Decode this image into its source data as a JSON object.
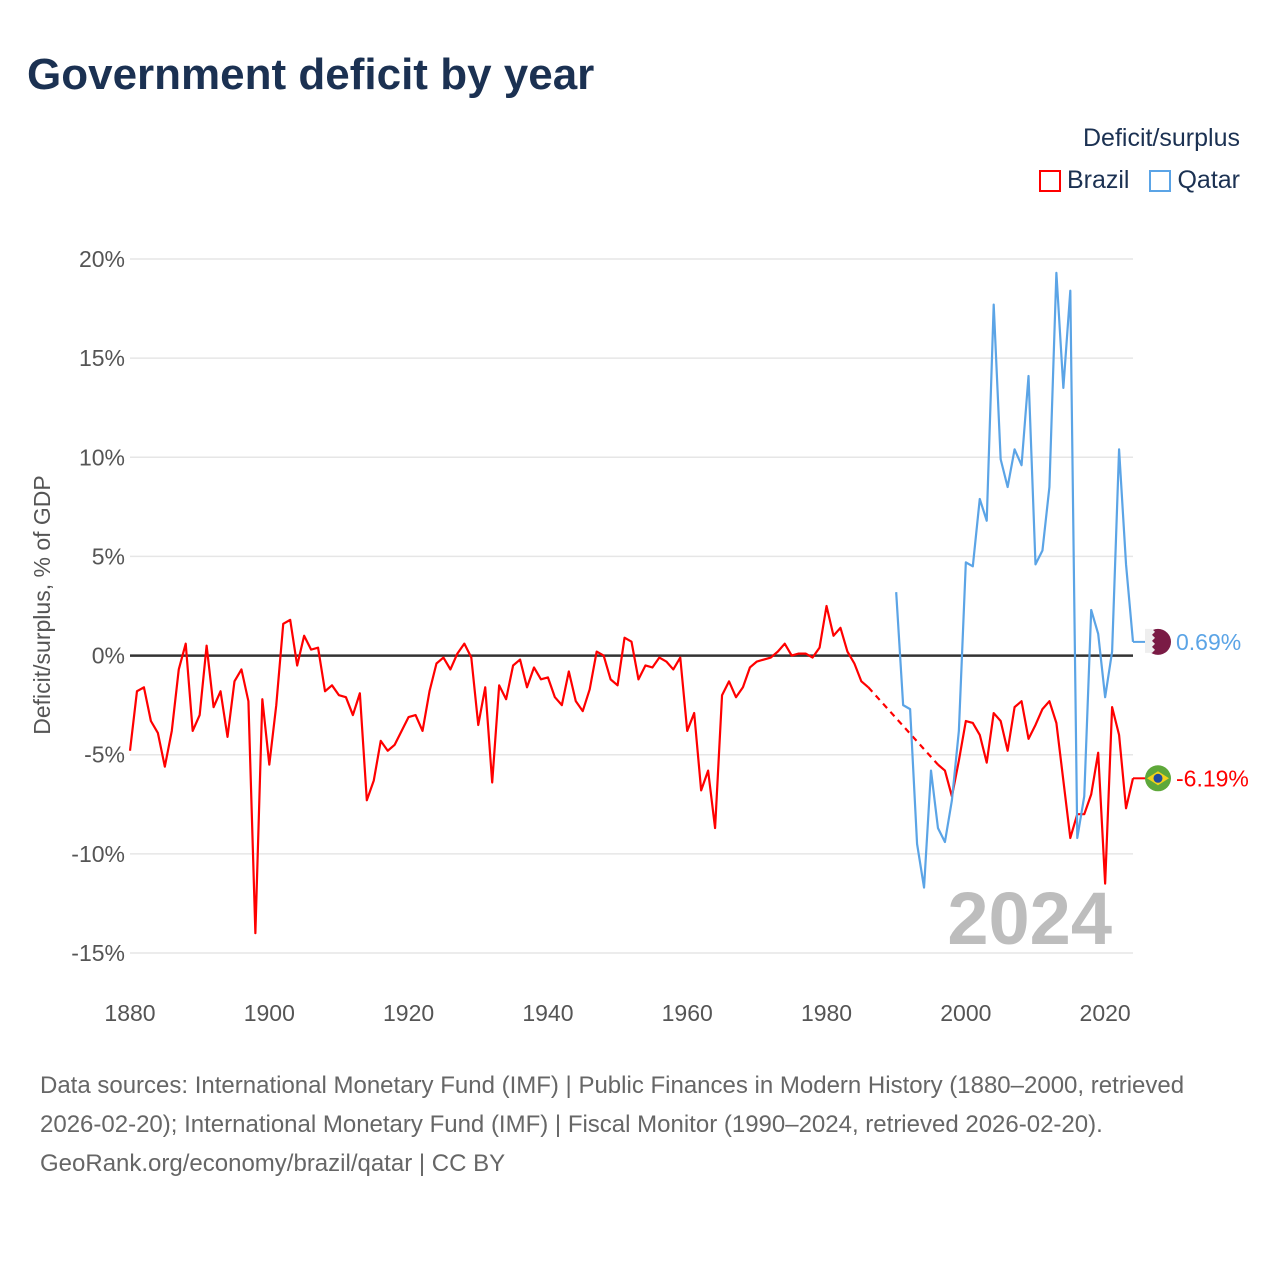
{
  "title": "Government deficit by year",
  "legend": {
    "title": "Deficit/surplus",
    "items": [
      {
        "label": "Brazil",
        "color": "#ff0000"
      },
      {
        "label": "Qatar",
        "color": "#5ba4e6"
      }
    ]
  },
  "footer": {
    "sources": "Data sources: International Monetary Fund (IMF) | Public Finances in Modern History (1880–2000, retrieved 2026-02-20); International Monetary Fund (IMF) | Fiscal Monitor (1990–2024, retrieved 2026-02-20).",
    "credit": "GeoRank.org/economy/brazil/qatar | CC BY"
  },
  "chart_data": {
    "type": "line",
    "title": "Government deficit by year",
    "ylabel": "Deficit/surplus, % of GDP",
    "xlabel": "",
    "xlim": [
      1880,
      2024
    ],
    "ylim": [
      -15,
      20
    ],
    "x_ticks": [
      "1880",
      "1900",
      "1920",
      "1940",
      "1960",
      "1980",
      "2000",
      "2020"
    ],
    "y_ticks": [
      {
        "v": 20,
        "label": "20%"
      },
      {
        "v": 15,
        "label": "15%"
      },
      {
        "v": 10,
        "label": "10%"
      },
      {
        "v": 5,
        "label": "5%"
      },
      {
        "v": 0,
        "label": "0%"
      },
      {
        "v": -5,
        "label": "-5%"
      },
      {
        "v": -10,
        "label": "-10%"
      },
      {
        "v": -15,
        "label": "-15%"
      }
    ],
    "year_watermark": "2024",
    "series": [
      {
        "name": "Brazil",
        "color": "#ff0000",
        "x_start": 1880,
        "end_label": "-6.19%",
        "values": [
          -4.8,
          -1.8,
          -1.6,
          -3.3,
          -3.9,
          -5.6,
          -3.8,
          -0.7,
          0.6,
          -3.8,
          -3.0,
          0.5,
          -2.6,
          -1.8,
          -4.1,
          -1.3,
          -0.7,
          -2.3,
          -14.0,
          -2.2,
          -5.5,
          -2.5,
          1.6,
          1.8,
          -0.5,
          1.0,
          0.3,
          0.4,
          -1.8,
          -1.5,
          -2.0,
          -2.1,
          -3.0,
          -1.9,
          -7.3,
          -6.3,
          -4.3,
          -4.8,
          -4.5,
          -3.8,
          -3.1,
          -3.0,
          -3.8,
          -1.8,
          -0.4,
          -0.1,
          -0.7,
          0.1,
          0.6,
          -0.1,
          -3.5,
          -1.6,
          -6.4,
          -1.5,
          -2.2,
          -0.5,
          -0.2,
          -1.6,
          -0.6,
          -1.2,
          -1.1,
          -2.1,
          -2.5,
          -0.8,
          -2.3,
          -2.8,
          -1.7,
          0.2,
          0.0,
          -1.2,
          -1.5,
          0.9,
          0.7,
          -1.2,
          -0.5,
          -0.6,
          -0.1,
          -0.3,
          -0.7,
          -0.1,
          -3.8,
          -2.9,
          -6.8,
          -5.8,
          -8.7,
          -2.0,
          -1.3,
          -2.1,
          -1.6,
          -0.6,
          -0.3,
          -0.2,
          -0.1,
          0.2,
          0.6,
          0.0,
          0.1,
          0.1,
          -0.1,
          0.4,
          2.5,
          1.0,
          1.4,
          0.2,
          -0.4,
          -1.3,
          -1.6,
          null,
          null,
          null,
          null,
          null,
          null,
          null,
          null,
          null,
          -5.5,
          -5.8,
          -7.1,
          -5.3,
          -3.3,
          -3.4,
          -4.0,
          -5.4,
          -2.9,
          -3.3,
          -4.8,
          -2.6,
          -2.3,
          -4.2,
          -3.5,
          -2.7,
          -2.3,
          -3.4,
          -6.3,
          -9.2,
          -8.0,
          -8.0,
          -7.0,
          -4.9,
          -11.5,
          -2.6,
          -4.0,
          -7.7,
          -6.19
        ]
      },
      {
        "name": "Qatar",
        "color": "#5ba4e6",
        "x_start": 1990,
        "end_label": "0.69%",
        "values": [
          3.2,
          -2.5,
          -2.7,
          -9.5,
          -11.7,
          -5.8,
          -8.7,
          -9.4,
          -7.3,
          -3.8,
          4.7,
          4.5,
          7.9,
          6.8,
          17.7,
          9.9,
          8.5,
          10.4,
          9.6,
          14.1,
          4.6,
          5.3,
          8.5,
          19.3,
          13.5,
          18.4,
          -9.2,
          -7.1,
          2.3,
          1.1,
          -2.1,
          0.2,
          10.4,
          4.6,
          0.69
        ]
      }
    ]
  }
}
